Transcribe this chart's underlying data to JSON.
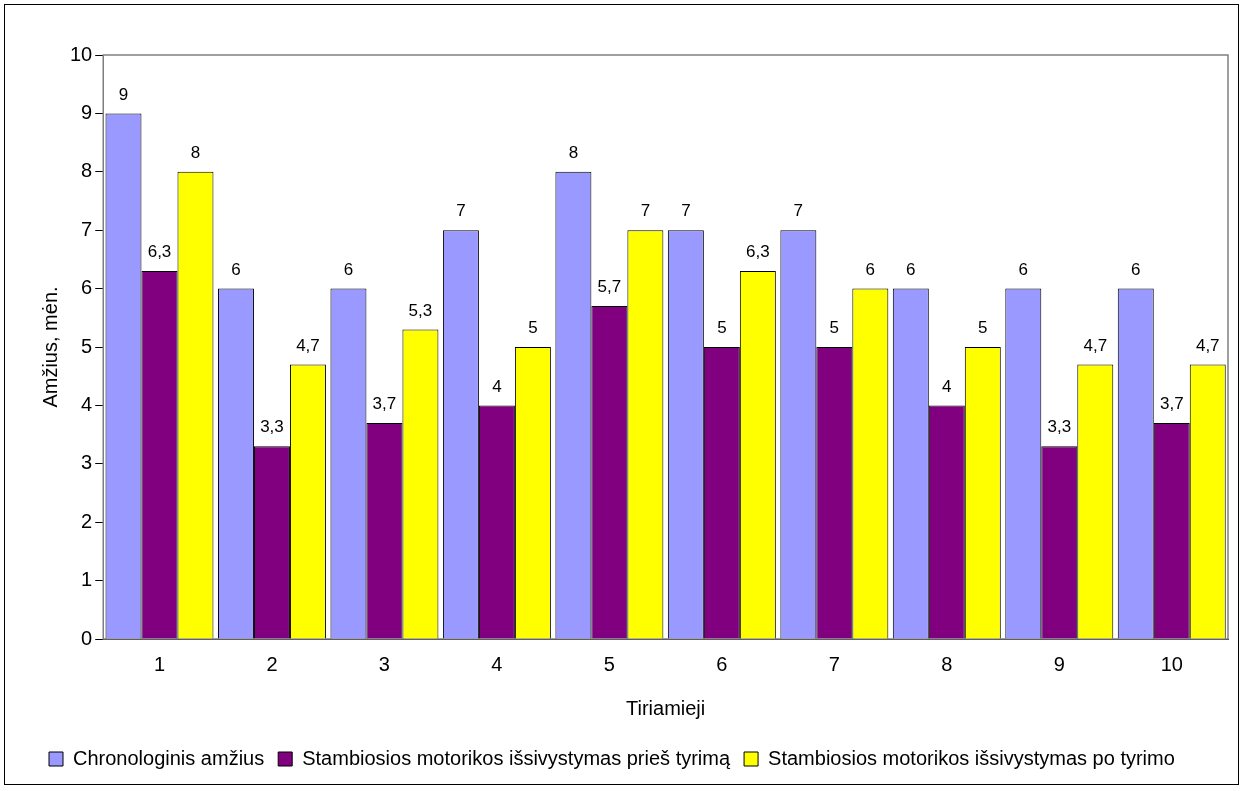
{
  "chart_data": {
    "type": "bar",
    "xlabel": "Tiriamieji",
    "ylabel": "Amžius, mėn.",
    "categories": [
      "1",
      "2",
      "3",
      "4",
      "5",
      "6",
      "7",
      "8",
      "9",
      "10"
    ],
    "series": [
      {
        "name": "Chronologinis amžius",
        "color": "#9999ff",
        "values": [
          9,
          6,
          6,
          7,
          8,
          7,
          7,
          6,
          6,
          6
        ],
        "value_labels": [
          "9",
          "6",
          "6",
          "7",
          "8",
          "7",
          "7",
          "6",
          "6",
          "6"
        ]
      },
      {
        "name": "Stambiosios motorikos išsivystymas prieš tyrimą",
        "color": "#800080",
        "values": [
          6.3,
          3.3,
          3.7,
          4,
          5.7,
          5,
          5,
          4,
          3.3,
          3.7
        ],
        "value_labels": [
          "6,3",
          "3,3",
          "3,7",
          "4",
          "5,7",
          "5",
          "5",
          "4",
          "3,3",
          "3,7"
        ]
      },
      {
        "name": "Stambiosios motorikos išsivystymas po tyrimo",
        "color": "#ffff00",
        "values": [
          8,
          4.7,
          5.3,
          5,
          7,
          6.3,
          6,
          5,
          4.7,
          4.7
        ],
        "value_labels": [
          "8",
          "4,7",
          "5,3",
          "5",
          "7",
          "6,3",
          "6",
          "5",
          "4,7",
          "4,7"
        ]
      }
    ],
    "ylim": [
      0,
      10
    ],
    "yticks": [
      0,
      1,
      2,
      3,
      4,
      5,
      6,
      7,
      8,
      9,
      10
    ],
    "grid": false,
    "legend": "bottom"
  }
}
